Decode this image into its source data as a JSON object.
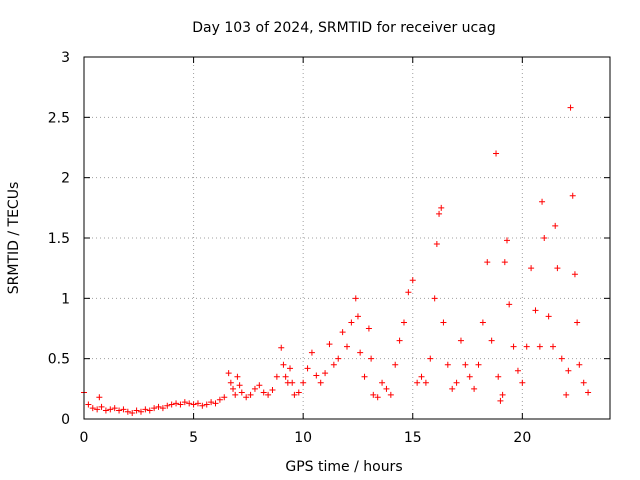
{
  "chart_data": {
    "type": "scatter",
    "title": "Day 103 of 2024, SRMTID for receiver ucag",
    "xlabel": "GPS time / hours",
    "ylabel": "SRMTID / TECUs",
    "xlim": [
      0,
      24
    ],
    "ylim": [
      0,
      3
    ],
    "x_ticks": [
      "0",
      "5",
      "10",
      "15",
      "20"
    ],
    "y_ticks": [
      "0",
      "0.5",
      "1",
      "1.5",
      "2",
      "2.5",
      "3"
    ],
    "grid": true,
    "marker": "+",
    "series": [
      {
        "name": "SRMTID",
        "color": "#ff0000",
        "x": [
          0.0,
          0.2,
          0.4,
          0.6,
          0.7,
          0.8,
          1.0,
          1.2,
          1.4,
          1.6,
          1.8,
          2.0,
          2.2,
          2.4,
          2.6,
          2.8,
          3.0,
          3.2,
          3.4,
          3.6,
          3.8,
          4.0,
          4.2,
          4.4,
          4.6,
          4.8,
          5.0,
          5.2,
          5.4,
          5.6,
          5.8,
          6.0,
          6.2,
          6.4,
          6.6,
          6.7,
          6.8,
          6.9,
          7.0,
          7.1,
          7.2,
          7.4,
          7.6,
          7.8,
          8.0,
          8.2,
          8.4,
          8.6,
          8.8,
          9.0,
          9.1,
          9.2,
          9.3,
          9.4,
          9.5,
          9.6,
          9.8,
          10.0,
          10.2,
          10.4,
          10.6,
          10.8,
          11.0,
          11.2,
          11.4,
          11.6,
          11.8,
          12.0,
          12.2,
          12.4,
          12.5,
          12.6,
          12.8,
          13.0,
          13.1,
          13.2,
          13.4,
          13.6,
          13.8,
          14.0,
          14.2,
          14.4,
          14.6,
          14.8,
          15.0,
          15.2,
          15.4,
          15.6,
          15.8,
          16.0,
          16.1,
          16.2,
          16.3,
          16.4,
          16.6,
          16.8,
          17.0,
          17.2,
          17.4,
          17.6,
          17.8,
          18.0,
          18.2,
          18.4,
          18.6,
          18.8,
          18.9,
          19.0,
          19.1,
          19.2,
          19.3,
          19.4,
          19.6,
          19.8,
          20.0,
          20.2,
          20.4,
          20.6,
          20.8,
          20.9,
          21.0,
          21.2,
          21.4,
          21.5,
          21.6,
          21.8,
          22.0,
          22.1,
          22.2,
          22.3,
          22.4,
          22.5,
          22.6,
          22.8,
          23.0
        ],
        "y": [
          0.22,
          0.12,
          0.09,
          0.08,
          0.18,
          0.1,
          0.07,
          0.08,
          0.09,
          0.07,
          0.08,
          0.06,
          0.05,
          0.07,
          0.06,
          0.08,
          0.07,
          0.09,
          0.1,
          0.09,
          0.11,
          0.12,
          0.13,
          0.12,
          0.14,
          0.13,
          0.12,
          0.13,
          0.11,
          0.12,
          0.14,
          0.13,
          0.16,
          0.18,
          0.38,
          0.3,
          0.25,
          0.2,
          0.35,
          0.28,
          0.22,
          0.18,
          0.2,
          0.25,
          0.28,
          0.22,
          0.2,
          0.24,
          0.35,
          0.59,
          0.45,
          0.35,
          0.3,
          0.42,
          0.3,
          0.2,
          0.22,
          0.3,
          0.42,
          0.55,
          0.36,
          0.3,
          0.38,
          0.62,
          0.45,
          0.5,
          0.72,
          0.6,
          0.8,
          1.0,
          0.85,
          0.55,
          0.35,
          0.75,
          0.5,
          0.2,
          0.18,
          0.3,
          0.25,
          0.2,
          0.45,
          0.65,
          0.8,
          1.05,
          1.15,
          0.3,
          0.35,
          0.3,
          0.5,
          1.0,
          1.45,
          1.7,
          1.75,
          0.8,
          0.45,
          0.25,
          0.3,
          0.65,
          0.45,
          0.35,
          0.25,
          0.45,
          0.8,
          1.3,
          0.65,
          2.2,
          0.35,
          0.15,
          0.2,
          1.3,
          1.48,
          0.95,
          0.6,
          0.4,
          0.3,
          0.6,
          1.25,
          0.9,
          0.6,
          1.8,
          1.5,
          0.85,
          0.6,
          1.6,
          1.25,
          0.5,
          0.2,
          0.4,
          2.58,
          1.85,
          1.2,
          0.8,
          0.45,
          0.3,
          0.22
        ]
      }
    ]
  }
}
